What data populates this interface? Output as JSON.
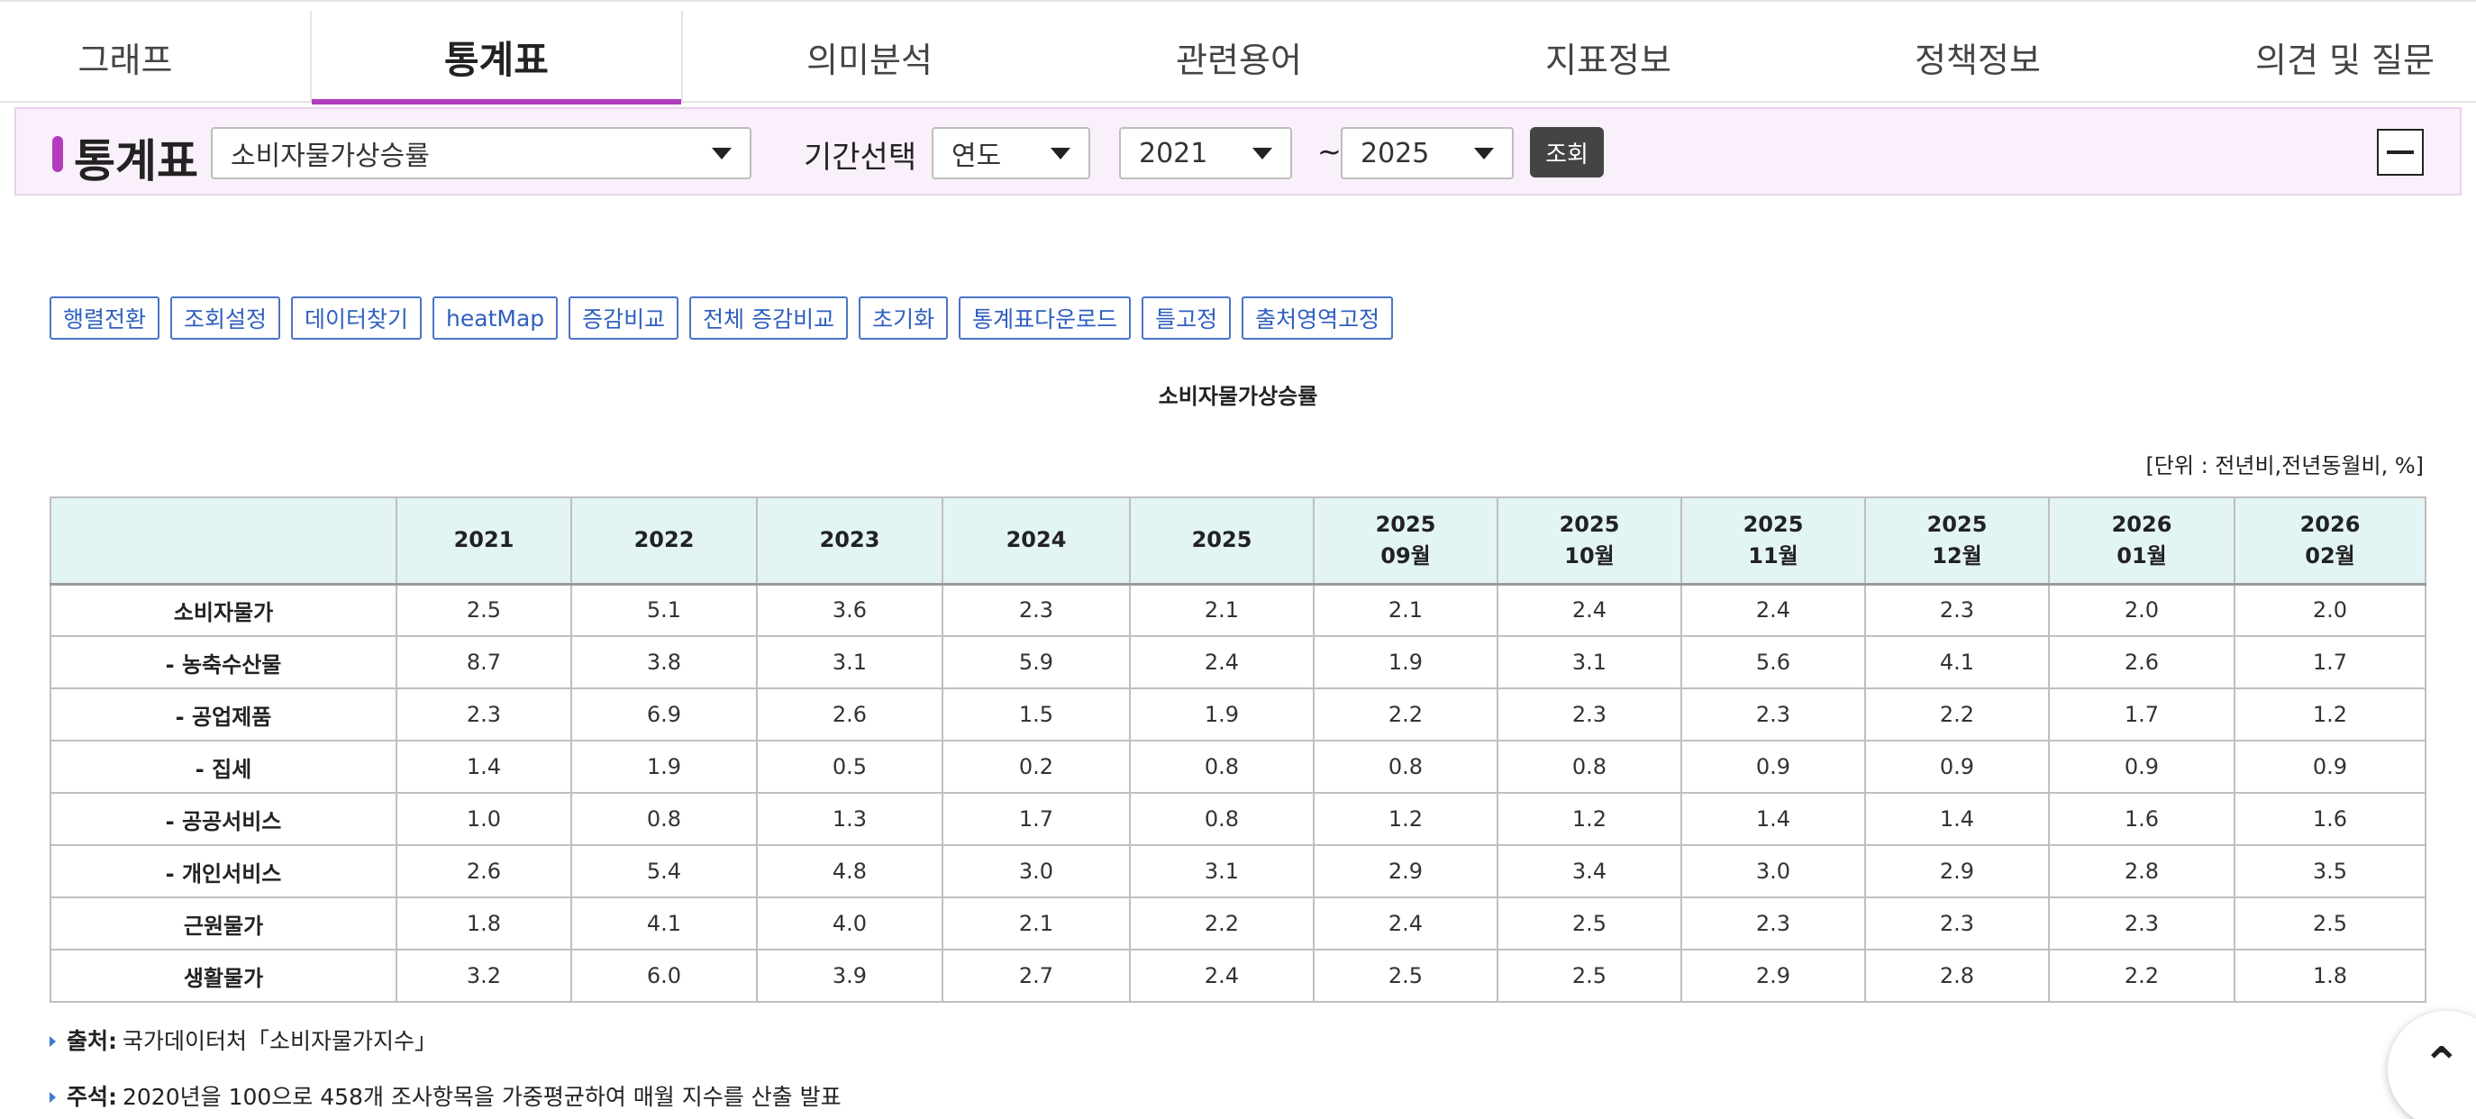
{
  "tabs": [
    {
      "label": "그래프",
      "active": false
    },
    {
      "label": "통계표",
      "active": true
    },
    {
      "label": "의미분석",
      "active": false
    },
    {
      "label": "관련용어",
      "active": false
    },
    {
      "label": "지표정보",
      "active": false
    },
    {
      "label": "정책정보",
      "active": false
    },
    {
      "label": "의견 및 질문",
      "active": false
    }
  ],
  "filter": {
    "title": "통계표",
    "indicator": "소비자물가상승률",
    "period_label": "기간선택",
    "period_type": "연도",
    "from_year": "2021",
    "tilde": "~",
    "to_year": "2025",
    "query_label": "조회"
  },
  "toolbar": [
    "행렬전환",
    "조회설정",
    "데이터찾기",
    "heatMap",
    "증감비교",
    "전체 증감비교",
    "초기화",
    "통계표다운로드",
    "틀고정",
    "출처영역고정"
  ],
  "table": {
    "title": "소비자물가상승률",
    "unit": "[단위 : 전년비,전년동월비, %]",
    "columns": [
      [
        "2021"
      ],
      [
        "2022"
      ],
      [
        "2023"
      ],
      [
        "2024"
      ],
      [
        "2025"
      ],
      [
        "2025",
        "09월"
      ],
      [
        "2025",
        "10월"
      ],
      [
        "2025",
        "11월"
      ],
      [
        "2025",
        "12월"
      ],
      [
        "2026",
        "01월"
      ],
      [
        "2026",
        "02월"
      ]
    ],
    "rows": [
      {
        "label": "소비자물가",
        "values": [
          "2.5",
          "5.1",
          "3.6",
          "2.3",
          "2.1",
          "2.1",
          "2.4",
          "2.4",
          "2.3",
          "2.0",
          "2.0"
        ]
      },
      {
        "label": "- 농축수산물",
        "values": [
          "8.7",
          "3.8",
          "3.1",
          "5.9",
          "2.4",
          "1.9",
          "3.1",
          "5.6",
          "4.1",
          "2.6",
          "1.7"
        ]
      },
      {
        "label": "- 공업제품",
        "values": [
          "2.3",
          "6.9",
          "2.6",
          "1.5",
          "1.9",
          "2.2",
          "2.3",
          "2.3",
          "2.2",
          "1.7",
          "1.2"
        ]
      },
      {
        "label": "- 집세",
        "values": [
          "1.4",
          "1.9",
          "0.5",
          "0.2",
          "0.8",
          "0.8",
          "0.8",
          "0.9",
          "0.9",
          "0.9",
          "0.9"
        ]
      },
      {
        "label": "- 공공서비스",
        "values": [
          "1.0",
          "0.8",
          "1.3",
          "1.7",
          "0.8",
          "1.2",
          "1.2",
          "1.4",
          "1.4",
          "1.6",
          "1.6"
        ]
      },
      {
        "label": "- 개인서비스",
        "values": [
          "2.6",
          "5.4",
          "4.8",
          "3.0",
          "3.1",
          "2.9",
          "3.4",
          "3.0",
          "2.9",
          "2.8",
          "3.5"
        ]
      },
      {
        "label": "근원물가",
        "values": [
          "1.8",
          "4.1",
          "4.0",
          "2.1",
          "2.2",
          "2.4",
          "2.5",
          "2.3",
          "2.3",
          "2.3",
          "2.5"
        ]
      },
      {
        "label": "생활물가",
        "values": [
          "3.2",
          "6.0",
          "3.9",
          "2.7",
          "2.4",
          "2.5",
          "2.5",
          "2.9",
          "2.8",
          "2.2",
          "1.8"
        ]
      }
    ]
  },
  "notes": {
    "source_label": "출처:",
    "source_text": "국가데이터처「소비자물가지수」",
    "remark_label": "주석:",
    "remark_text": "2020년을 100으로 458개 조사항목을 가중평균하여 매월 지수를 산출 발표"
  },
  "icons": {
    "scroll_top": "chevron-up-icon",
    "collapse": "minus-icon",
    "dropdown": "caret-down-icon"
  },
  "colors": {
    "accent": "#b23bbd",
    "header_bg": "#e3f4f4",
    "toolbar_btn": "#2f5fbf",
    "filter_bg": "#faf0fb"
  }
}
